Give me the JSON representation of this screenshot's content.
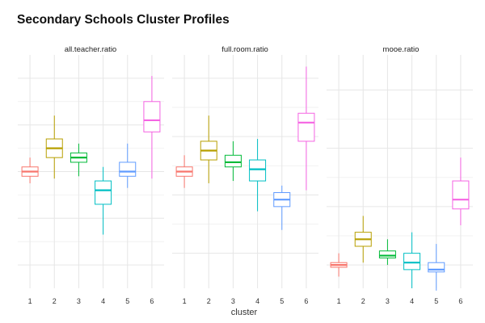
{
  "chart_data": {
    "type": "boxplot",
    "title": "Secondary Schools Cluster Profiles",
    "xlabel": "cluster",
    "ylabel": "",
    "categories": [
      "1",
      "2",
      "3",
      "4",
      "5",
      "6"
    ],
    "grid": true,
    "legend": "none",
    "colors": [
      "#F8766D",
      "#B79F00",
      "#00BA38",
      "#00BFC4",
      "#619CFF",
      "#F564E3"
    ],
    "facets": [
      {
        "name": "all.teacher.ratio",
        "ylim": [
          0,
          100
        ],
        "major_grid": [
          10,
          30,
          50,
          70,
          90
        ],
        "boxes": [
          {
            "cluster": "1",
            "min": 45,
            "q1": 48,
            "median": 50,
            "q3": 52,
            "max": 56
          },
          {
            "cluster": "2",
            "min": 47,
            "q1": 56,
            "median": 60,
            "q3": 64,
            "max": 74
          },
          {
            "cluster": "3",
            "min": 48,
            "q1": 54,
            "median": 56,
            "q3": 58,
            "max": 62
          },
          {
            "cluster": "4",
            "min": 23,
            "q1": 36,
            "median": 42,
            "q3": 46,
            "max": 52
          },
          {
            "cluster": "5",
            "min": 43,
            "q1": 48,
            "median": 50,
            "q3": 54,
            "max": 62
          },
          {
            "cluster": "6",
            "min": 47,
            "q1": 67,
            "median": 72,
            "q3": 80,
            "max": 91
          }
        ]
      },
      {
        "name": "full.room.ratio",
        "ylim": [
          0,
          100
        ],
        "major_grid": [
          15,
          40,
          65,
          90
        ],
        "boxes": [
          {
            "cluster": "1",
            "min": 43,
            "q1": 48,
            "median": 50,
            "q3": 52,
            "max": 57
          },
          {
            "cluster": "2",
            "min": 45,
            "q1": 55,
            "median": 59,
            "q3": 63,
            "max": 74
          },
          {
            "cluster": "3",
            "min": 46,
            "q1": 52,
            "median": 54,
            "q3": 57,
            "max": 63
          },
          {
            "cluster": "4",
            "min": 33,
            "q1": 46,
            "median": 51,
            "q3": 55,
            "max": 64
          },
          {
            "cluster": "5",
            "min": 25,
            "q1": 35,
            "median": 38,
            "q3": 41,
            "max": 44
          },
          {
            "cluster": "6",
            "min": 42,
            "q1": 63,
            "median": 71,
            "q3": 75,
            "max": 95
          }
        ]
      },
      {
        "name": "mooe.ratio",
        "ylim": [
          0,
          100
        ],
        "major_grid": [
          10,
          35,
          60,
          85
        ],
        "boxes": [
          {
            "cluster": "1",
            "min": 5,
            "q1": 9,
            "median": 10,
            "q3": 11,
            "max": 15
          },
          {
            "cluster": "2",
            "min": 11,
            "q1": 18,
            "median": 21,
            "q3": 24,
            "max": 31
          },
          {
            "cluster": "3",
            "min": 10,
            "q1": 13,
            "median": 14,
            "q3": 16,
            "max": 21
          },
          {
            "cluster": "4",
            "min": 0,
            "q1": 8,
            "median": 11,
            "q3": 15,
            "max": 24
          },
          {
            "cluster": "5",
            "min": -1,
            "q1": 7,
            "median": 8,
            "q3": 11,
            "max": 19
          },
          {
            "cluster": "6",
            "min": 27,
            "q1": 34,
            "median": 38,
            "q3": 46,
            "max": 56
          }
        ]
      }
    ]
  }
}
